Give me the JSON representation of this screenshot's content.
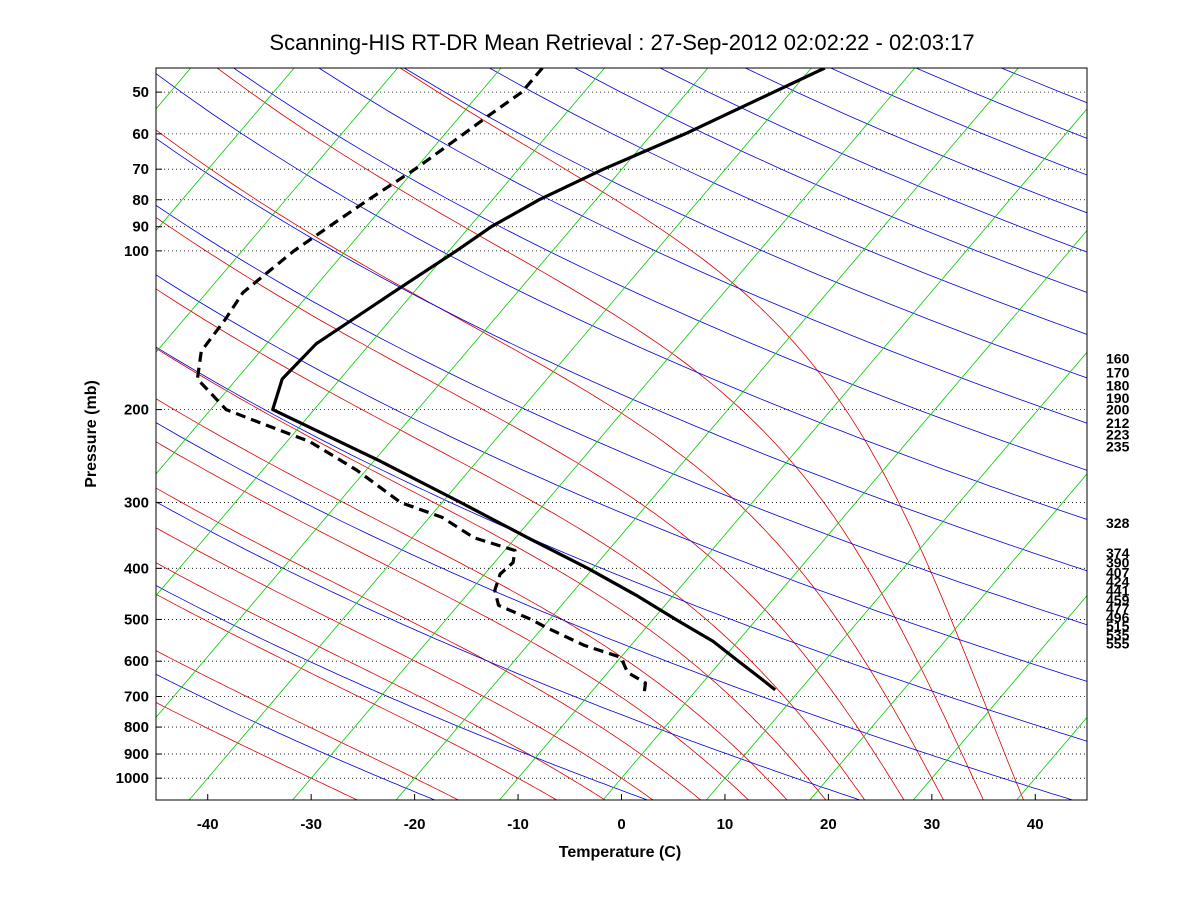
{
  "chart_data": {
    "type": "skew-t",
    "title": "Scanning-HIS RT-DR Mean Retrieval : 27-Sep-2012 02:02:22 - 02:03:17",
    "xlabel": "Temperature (C)",
    "ylabel": "Pressure (mb)",
    "xlim": [
      -45,
      45
    ],
    "ylim_mb": [
      1100,
      45
    ],
    "x_ticks": [
      -40,
      -30,
      -20,
      -10,
      0,
      10,
      20,
      30,
      40
    ],
    "y_ticks": [
      50,
      60,
      70,
      80,
      90,
      100,
      200,
      300,
      400,
      500,
      600,
      700,
      800,
      900,
      1000
    ],
    "right_axis_labels": [
      {
        "p": 160,
        "text": "160"
      },
      {
        "p": 170,
        "text": "170"
      },
      {
        "p": 180,
        "text": "180"
      },
      {
        "p": 190,
        "text": "190"
      },
      {
        "p": 200,
        "text": "200"
      },
      {
        "p": 212,
        "text": "212"
      },
      {
        "p": 223,
        "text": "223"
      },
      {
        "p": 235,
        "text": "235"
      },
      {
        "p": 328,
        "text": "328"
      },
      {
        "p": 374,
        "text": "374"
      },
      {
        "p": 390,
        "text": "390"
      },
      {
        "p": 407,
        "text": "407"
      },
      {
        "p": 424,
        "text": "424"
      },
      {
        "p": 441,
        "text": "441"
      },
      {
        "p": 459,
        "text": "459"
      },
      {
        "p": 477,
        "text": "477"
      },
      {
        "p": 496,
        "text": "496"
      },
      {
        "p": 515,
        "text": "515"
      },
      {
        "p": 535,
        "text": "535"
      },
      {
        "p": 555,
        "text": "555"
      }
    ],
    "series": [
      {
        "name": "temperature",
        "style": "solid",
        "color": "#000000",
        "points": [
          [
            45,
            -38.7
          ],
          [
            60,
            -46.8
          ],
          [
            70,
            -51.8
          ],
          [
            80,
            -55.5
          ],
          [
            90,
            -57.9
          ],
          [
            100,
            -59.3
          ],
          [
            120,
            -62.0
          ],
          [
            150,
            -65.2
          ],
          [
            175,
            -65.6
          ],
          [
            200,
            -64.0
          ],
          [
            220,
            -57.8
          ],
          [
            250,
            -49.5
          ],
          [
            300,
            -38.2
          ],
          [
            350,
            -28.8
          ],
          [
            400,
            -20.5
          ],
          [
            450,
            -13.6
          ],
          [
            500,
            -7.8
          ],
          [
            550,
            -2.4
          ],
          [
            600,
            1.7
          ],
          [
            650,
            5.5
          ],
          [
            680,
            7.6
          ]
        ]
      },
      {
        "name": "dewpoint",
        "style": "dashed",
        "color": "#000000",
        "points": [
          [
            45,
            -66.0
          ],
          [
            50,
            -66.0
          ],
          [
            55,
            -67.2
          ],
          [
            60,
            -68.2
          ],
          [
            70,
            -70.0
          ],
          [
            80,
            -72.0
          ],
          [
            90,
            -73.6
          ],
          [
            100,
            -75.0
          ],
          [
            120,
            -76.5
          ],
          [
            135,
            -76.0
          ],
          [
            155,
            -75.7
          ],
          [
            175,
            -73.8
          ],
          [
            200,
            -68.5
          ],
          [
            210,
            -64.8
          ],
          [
            230,
            -57.8
          ],
          [
            260,
            -51.0
          ],
          [
            300,
            -44.0
          ],
          [
            320,
            -38.8
          ],
          [
            350,
            -34.0
          ],
          [
            370,
            -29.0
          ],
          [
            390,
            -28.2
          ],
          [
            410,
            -28.5
          ],
          [
            440,
            -27.7
          ],
          [
            470,
            -26.1
          ],
          [
            500,
            -21.8
          ],
          [
            520,
            -19.4
          ],
          [
            560,
            -14.5
          ],
          [
            590,
            -10.0
          ],
          [
            630,
            -8.1
          ],
          [
            660,
            -5.5
          ],
          [
            690,
            -4.8
          ]
        ]
      }
    ],
    "isotherm_temps": [
      -150,
      -140,
      -130,
      -120,
      -110,
      -100,
      -90,
      -80,
      -70,
      -60,
      -50,
      -40,
      -30,
      -20,
      -10,
      0,
      10,
      20,
      30,
      40
    ],
    "dry_adiabat_thetas_K": [
      250,
      270,
      290,
      310,
      330,
      350,
      370,
      390,
      410,
      430,
      450,
      470,
      490,
      510,
      530,
      550,
      570,
      590,
      610,
      640,
      680
    ],
    "moist_adiabat_start_temps": [
      -30,
      -20,
      -10,
      -5,
      0,
      5,
      10,
      14,
      18,
      22,
      26,
      30,
      34,
      38
    ]
  }
}
